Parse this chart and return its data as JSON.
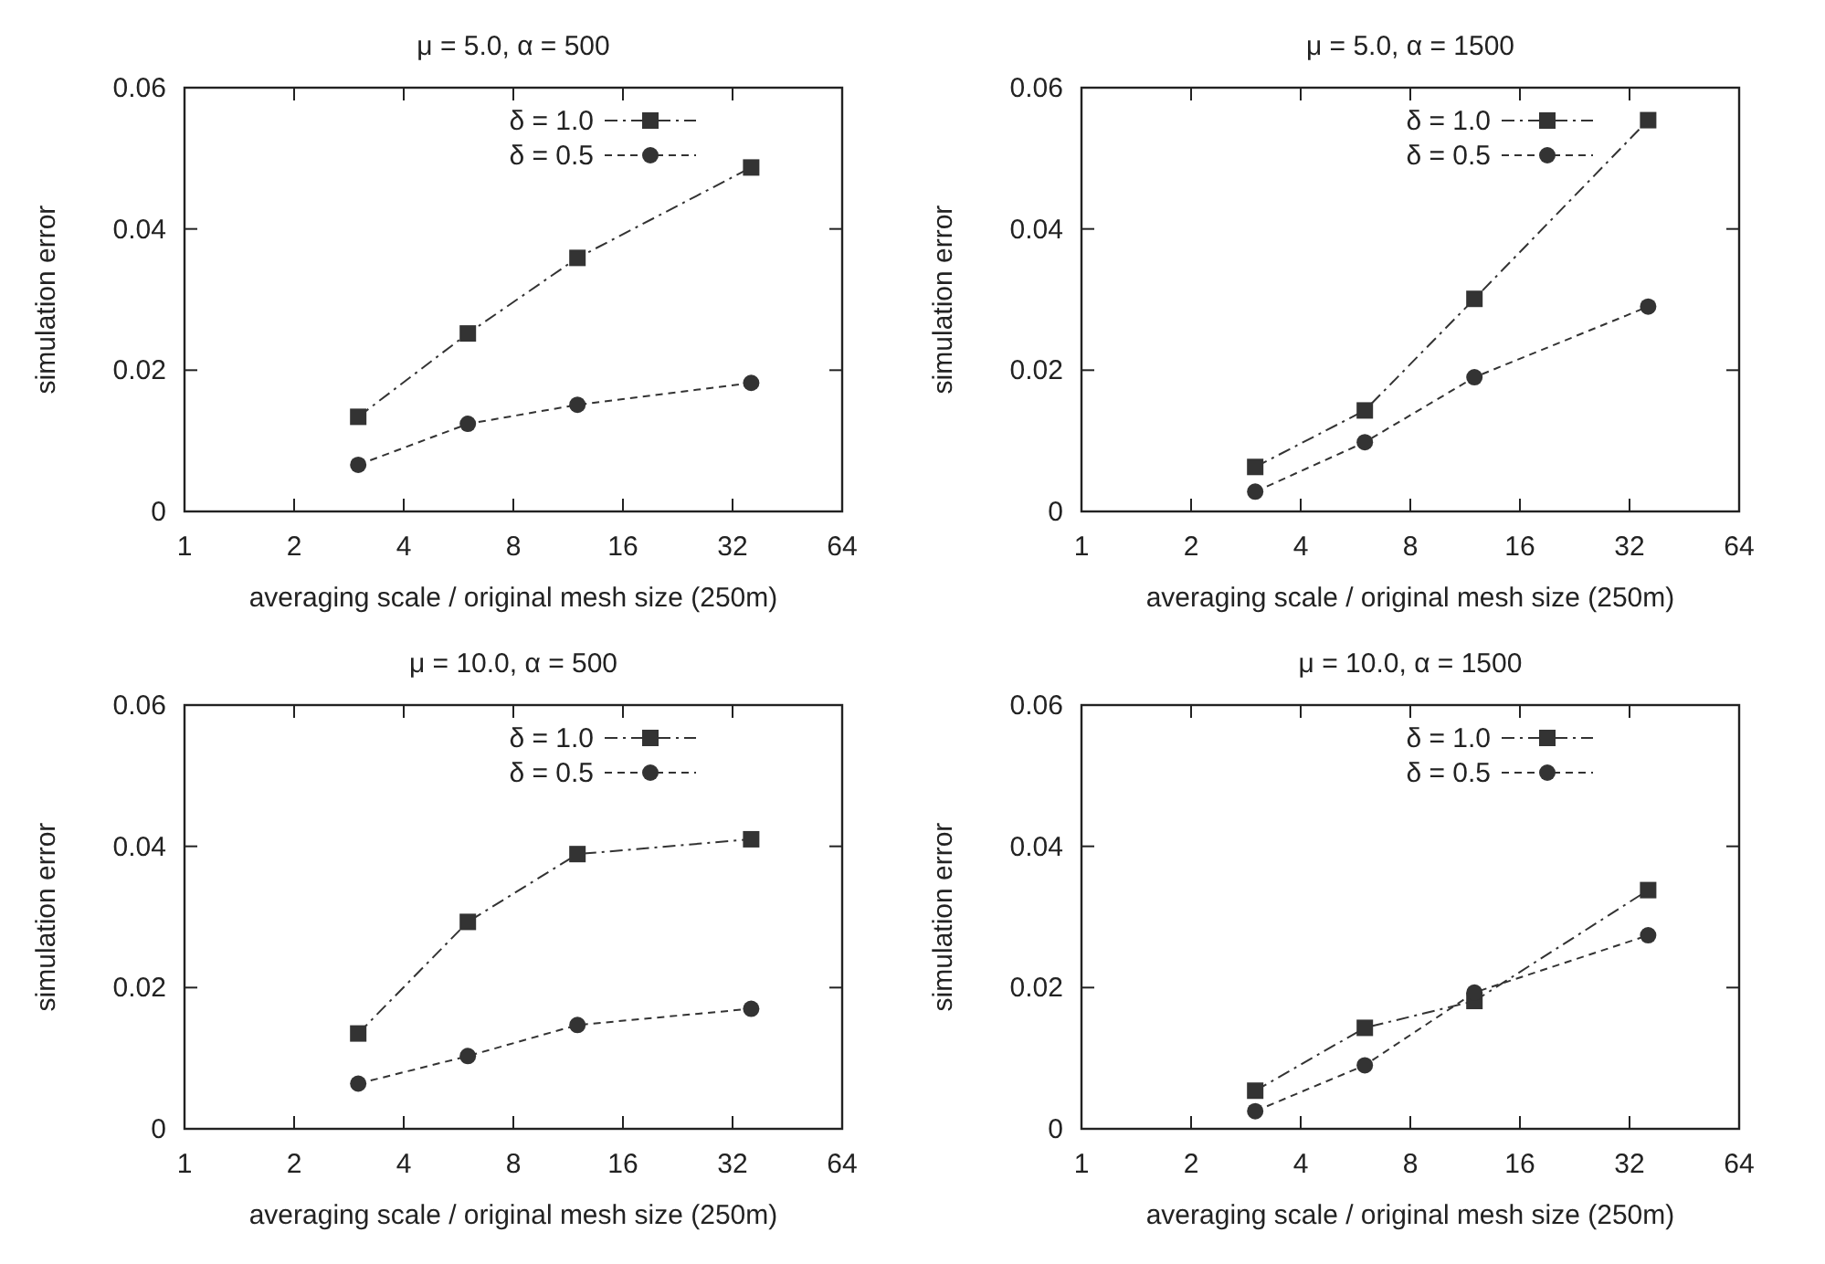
{
  "chart_data": [
    {
      "type": "line",
      "title": "μ = 5.0, α = 500",
      "xlabel": "averaging scale / original mesh size (250m)",
      "ylabel": "simulation error",
      "log": "x",
      "xlim": [
        1,
        64
      ],
      "xticks": [
        1,
        2,
        4,
        8,
        16,
        32,
        64
      ],
      "ylim": [
        0,
        0.06
      ],
      "yticks": [
        0,
        0.02,
        0.04,
        0.06
      ],
      "legend": "top right",
      "x": [
        3,
        6,
        12,
        36
      ],
      "series": [
        {
          "name": "δ = 1.0",
          "color": "#333333",
          "marker": "square",
          "line_style": "dashdot",
          "values": [
            0.0134,
            0.0252,
            0.0359,
            0.0487
          ]
        },
        {
          "name": "δ  = 0.5",
          "color": "#333333",
          "marker": "circle",
          "line_style": "dashed",
          "values": [
            0.0066,
            0.0124,
            0.0151,
            0.0182
          ]
        }
      ]
    },
    {
      "type": "line",
      "title": "μ = 5.0, α = 1500",
      "xlabel": "averaging scale / original mesh size (250m)",
      "ylabel": "simulation error",
      "log": "x",
      "xlim": [
        1,
        64
      ],
      "xticks": [
        1,
        2,
        4,
        8,
        16,
        32,
        64
      ],
      "ylim": [
        0,
        0.06
      ],
      "yticks": [
        0,
        0.02,
        0.04,
        0.06
      ],
      "legend": "top right",
      "x": [
        3,
        6,
        12,
        36
      ],
      "series": [
        {
          "name": "δ = 1.0",
          "color": "#333333",
          "marker": "square",
          "line_style": "dashdot",
          "values": [
            0.0063,
            0.0143,
            0.0301,
            0.0554
          ]
        },
        {
          "name": "δ  = 0.5",
          "color": "#333333",
          "marker": "circle",
          "line_style": "dashed",
          "values": [
            0.0028,
            0.0098,
            0.019,
            0.029
          ]
        }
      ]
    },
    {
      "type": "line",
      "title": "μ = 10.0, α = 500",
      "xlabel": "averaging scale / original mesh size (250m)",
      "ylabel": "simulation error",
      "log": "x",
      "xlim": [
        1,
        64
      ],
      "xticks": [
        1,
        2,
        4,
        8,
        16,
        32,
        64
      ],
      "ylim": [
        0,
        0.06
      ],
      "yticks": [
        0,
        0.02,
        0.04,
        0.06
      ],
      "legend": "top right",
      "x": [
        3,
        6,
        12,
        36
      ],
      "series": [
        {
          "name": "δ = 1.0",
          "color": "#333333",
          "marker": "square",
          "line_style": "dashdot",
          "values": [
            0.0135,
            0.0293,
            0.0389,
            0.041
          ]
        },
        {
          "name": "δ  = 0.5",
          "color": "#333333",
          "marker": "circle",
          "line_style": "dashed",
          "values": [
            0.0064,
            0.0103,
            0.0147,
            0.017
          ]
        }
      ]
    },
    {
      "type": "line",
      "title": "μ = 10.0, α = 1500",
      "xlabel": "averaging scale / original mesh size (250m)",
      "ylabel": "simulation error",
      "log": "x",
      "xlim": [
        1,
        64
      ],
      "xticks": [
        1,
        2,
        4,
        8,
        16,
        32,
        64
      ],
      "ylim": [
        0,
        0.06
      ],
      "yticks": [
        0,
        0.02,
        0.04,
        0.06
      ],
      "legend": "top right",
      "x": [
        3,
        6,
        12,
        36
      ],
      "series": [
        {
          "name": "δ = 1.0",
          "color": "#333333",
          "marker": "square",
          "line_style": "dashdot",
          "values": [
            0.0054,
            0.0143,
            0.0181,
            0.0338
          ]
        },
        {
          "name": "δ  = 0.5",
          "color": "#333333",
          "marker": "circle",
          "line_style": "dashed",
          "values": [
            0.0025,
            0.009,
            0.0193,
            0.0274
          ]
        }
      ]
    }
  ]
}
